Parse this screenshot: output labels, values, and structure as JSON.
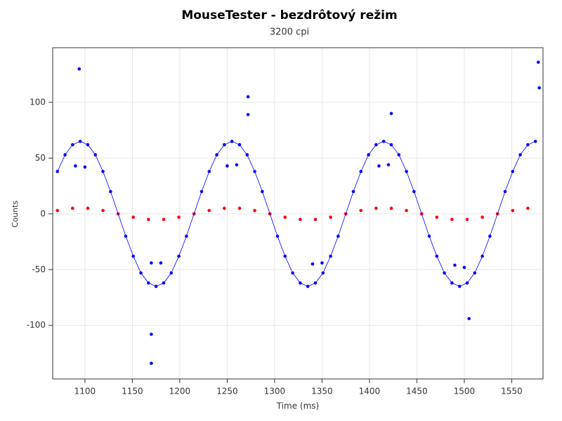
{
  "chart_data": {
    "type": "scatter",
    "title": "MouseTester - bezdrôtový režim",
    "subtitle": "3200 cpi",
    "x_label": "Time (ms)",
    "y_label": "Counts",
    "xlim": [
      1066,
      1583
    ],
    "ylim": [
      -148,
      149
    ],
    "xticks": [
      1100,
      1150,
      1200,
      1250,
      1300,
      1350,
      1400,
      1450,
      1500,
      1550
    ],
    "yticks": [
      -100,
      -50,
      0,
      50,
      100
    ],
    "grid": true,
    "series": [
      {
        "type": "scatter",
        "color": "#0000ff",
        "x": [
          1071,
          1079,
          1087,
          1095,
          1103,
          1111,
          1119,
          1127,
          1135,
          1143,
          1151,
          1159,
          1167,
          1175,
          1183,
          1191,
          1199,
          1207,
          1215,
          1223,
          1231,
          1239,
          1247,
          1255,
          1263,
          1271,
          1279,
          1287,
          1295,
          1303,
          1311,
          1319,
          1327,
          1335,
          1343,
          1351,
          1359,
          1367,
          1375,
          1383,
          1391,
          1399,
          1407,
          1415,
          1423,
          1431,
          1439,
          1447,
          1455,
          1463,
          1471,
          1479,
          1487,
          1495,
          1503,
          1511,
          1519,
          1527,
          1535,
          1543,
          1551,
          1559,
          1567,
          1575,
          1094,
          1272,
          1272,
          1170,
          1170,
          1423,
          1505,
          1578,
          1579,
          1090,
          1100,
          1250,
          1260,
          1410,
          1420,
          1170,
          1180,
          1340,
          1350,
          1490,
          1500
        ],
        "values": [
          38,
          53,
          62,
          65,
          62,
          53,
          38,
          20,
          0,
          -20,
          -38,
          -53,
          -62,
          -65,
          -62,
          -53,
          -38,
          -20,
          0,
          20,
          38,
          53,
          62,
          65,
          62,
          53,
          38,
          20,
          0,
          -20,
          -38,
          -53,
          -62,
          -65,
          -62,
          -53,
          -38,
          -20,
          0,
          20,
          38,
          53,
          62,
          65,
          62,
          53,
          38,
          20,
          0,
          -20,
          -38,
          -53,
          -62,
          -65,
          -62,
          -53,
          -38,
          -20,
          0,
          20,
          38,
          53,
          62,
          65,
          130,
          105,
          89,
          -108,
          -134,
          90,
          -94,
          136,
          113,
          43,
          42,
          43,
          44,
          43,
          44,
          -44,
          -44,
          -45,
          -44,
          -46,
          -48
        ]
      },
      {
        "type": "scatter",
        "color": "#ff0000",
        "x": [
          1071,
          1087,
          1103,
          1119,
          1135,
          1151,
          1167,
          1183,
          1199,
          1215,
          1231,
          1247,
          1263,
          1279,
          1295,
          1311,
          1327,
          1343,
          1359,
          1375,
          1391,
          1407,
          1423,
          1439,
          1455,
          1471,
          1487,
          1503,
          1519,
          1535,
          1551,
          1567
        ],
        "values": [
          3,
          5,
          5,
          3,
          0,
          -3,
          -5,
          -5,
          -3,
          0,
          3,
          5,
          5,
          3,
          0,
          -3,
          -5,
          -5,
          -3,
          0,
          3,
          5,
          5,
          3,
          0,
          -3,
          -5,
          -5,
          -3,
          0,
          3,
          5
        ]
      },
      {
        "type": "line",
        "color": "#0000ff",
        "x": [
          1071,
          1079,
          1087,
          1095,
          1103,
          1111,
          1119,
          1127,
          1135,
          1143,
          1151,
          1159,
          1167,
          1175,
          1183,
          1191,
          1199,
          1207,
          1215,
          1223,
          1231,
          1239,
          1247,
          1255,
          1263,
          1271,
          1279,
          1287,
          1295,
          1303,
          1311,
          1319,
          1327,
          1335,
          1343,
          1351,
          1359,
          1367,
          1375,
          1383,
          1391,
          1399,
          1407,
          1415,
          1423,
          1431,
          1439,
          1447,
          1455,
          1463,
          1471,
          1479,
          1487,
          1495,
          1503,
          1511,
          1519,
          1527,
          1535,
          1543,
          1551,
          1559,
          1567,
          1575
        ],
        "values": [
          38,
          53,
          62,
          65,
          62,
          53,
          38,
          20,
          0,
          -20,
          -38,
          -53,
          -62,
          -65,
          -62,
          -53,
          -38,
          -20,
          0,
          20,
          38,
          53,
          62,
          65,
          62,
          53,
          38,
          20,
          0,
          -20,
          -38,
          -53,
          -62,
          -65,
          -62,
          -53,
          -38,
          -20,
          0,
          20,
          38,
          53,
          62,
          65,
          62,
          53,
          38,
          20,
          0,
          -20,
          -38,
          -53,
          -62,
          -65,
          -62,
          -53,
          -38,
          -20,
          0,
          20,
          38,
          53,
          62,
          65
        ]
      }
    ]
  }
}
